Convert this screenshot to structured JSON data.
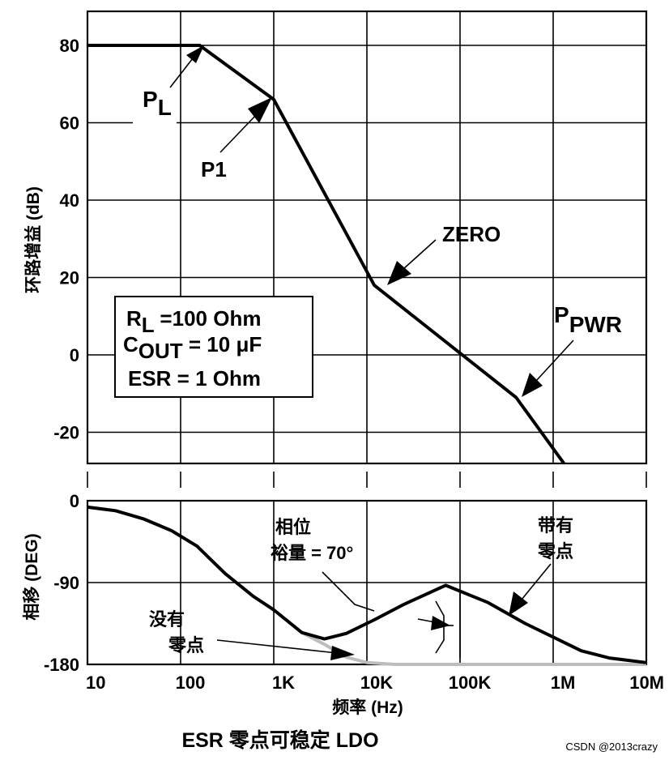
{
  "chart_data": [
    {
      "type": "line",
      "x_scale": "log",
      "xlim": [
        10,
        10000000
      ],
      "ylim": [
        -28,
        89
      ],
      "yticks": [
        80,
        60,
        40,
        20,
        0,
        -20
      ],
      "ylabel": "环路增益 (dB)",
      "grid": true,
      "series": [
        {
          "x": [
            10,
            160,
            1000,
            12000,
            400000,
            1300000
          ],
          "y": [
            80,
            80,
            66,
            18,
            -11,
            -28
          ]
        }
      ],
      "annotations": [
        {
          "id": "pl",
          "main": "P",
          "sub": "L",
          "x": 160,
          "y": 80
        },
        {
          "id": "p1",
          "main": "P1",
          "sub": "",
          "x": 1000,
          "y": 66
        },
        {
          "id": "zero",
          "main": "ZERO",
          "sub": "",
          "x": 12000,
          "y": 18
        },
        {
          "id": "ppwr",
          "main": "P",
          "sub": "PWR",
          "x": 400000,
          "y": -11
        }
      ],
      "legend_box": [
        {
          "main": "R",
          "sub": "L",
          "rest": " =100 Ohm"
        },
        {
          "main": "C",
          "sub": "OUT",
          "rest": " = 10 μF"
        },
        {
          "main": "ESR = 1 Ohm",
          "sub": "",
          "rest": ""
        }
      ]
    },
    {
      "type": "line",
      "x_scale": "log",
      "xlim": [
        10,
        10000000
      ],
      "ylim": [
        -180,
        0
      ],
      "yticks": [
        0,
        -90,
        -180
      ],
      "xticks": [
        "10",
        "100",
        "1K",
        "10K",
        "100K",
        "1M",
        "10M"
      ],
      "xlabel": "频率 (Hz)",
      "ylabel": "相移 (DEG)",
      "grid": true,
      "series": [
        {
          "name": "带有零点",
          "color": "#000000",
          "x": [
            10,
            20,
            40,
            80,
            150,
            300,
            600,
            1000,
            2000,
            3500,
            6000,
            12000,
            25000,
            70000,
            200000,
            500000,
            1000000,
            2000000,
            4000000,
            10000000
          ],
          "y": [
            -7,
            -11,
            -20,
            -33,
            -50,
            -80,
            -105,
            -120,
            -145,
            -152,
            -146,
            -131,
            -114,
            -93,
            -112,
            -135,
            -150,
            -165,
            -173,
            -178
          ]
        },
        {
          "name": "没有零点",
          "color": "#bdbdbd",
          "x": [
            2000,
            3500,
            6000,
            10000,
            20000,
            50000,
            100000,
            1000000,
            10000000
          ],
          "y": [
            -145,
            -158,
            -172,
            -178,
            -180,
            -180,
            -180,
            -180,
            -180
          ]
        }
      ],
      "annotations": [
        {
          "id": "phase-margin",
          "lines": [
            "相位",
            "裕量 = 70°"
          ]
        },
        {
          "id": "with-zero",
          "lines": [
            "带有",
            "零点"
          ]
        },
        {
          "id": "without-zero",
          "lines": [
            "没有",
            "零点"
          ]
        }
      ]
    }
  ],
  "caption": "ESR 零点可稳定 LDO",
  "watermark": "CSDN @2013crazy"
}
